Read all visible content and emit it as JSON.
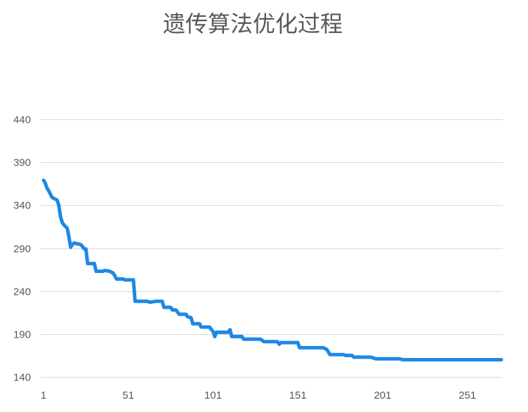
{
  "chart_data": {
    "type": "line",
    "title": "遗传算法优化过程",
    "xlabel": "",
    "ylabel": "",
    "xlim": [
      1,
      271
    ],
    "ylim": [
      140,
      440
    ],
    "x_ticks": [
      1,
      51,
      101,
      151,
      201,
      251
    ],
    "y_ticks": [
      140,
      190,
      240,
      290,
      340,
      390,
      440
    ],
    "grid": true,
    "legend": "none",
    "series": [
      {
        "color": "#1E88E5",
        "points": [
          [
            1,
            369
          ],
          [
            2,
            366
          ],
          [
            3,
            360
          ],
          [
            4,
            357
          ],
          [
            5,
            353
          ],
          [
            6,
            349
          ],
          [
            8,
            347
          ],
          [
            9,
            346
          ],
          [
            10,
            340
          ],
          [
            11,
            327
          ],
          [
            12,
            320
          ],
          [
            13,
            317
          ],
          [
            14,
            315
          ],
          [
            15,
            313
          ],
          [
            16,
            303
          ],
          [
            17,
            291
          ],
          [
            18,
            294
          ],
          [
            19,
            296
          ],
          [
            21,
            295
          ],
          [
            23,
            294
          ],
          [
            24,
            292
          ],
          [
            25,
            289
          ],
          [
            26,
            289
          ],
          [
            27,
            272
          ],
          [
            31,
            272
          ],
          [
            32,
            263
          ],
          [
            36,
            263
          ],
          [
            37,
            264
          ],
          [
            40,
            263
          ],
          [
            42,
            261
          ],
          [
            43,
            258
          ],
          [
            44,
            254
          ],
          [
            48,
            254
          ],
          [
            49,
            253
          ],
          [
            54,
            253
          ],
          [
            55,
            228
          ],
          [
            62,
            228
          ],
          [
            64,
            227
          ],
          [
            67,
            228
          ],
          [
            71,
            228
          ],
          [
            72,
            221
          ],
          [
            76,
            221
          ],
          [
            77,
            218
          ],
          [
            79,
            218
          ],
          [
            81,
            213
          ],
          [
            85,
            213
          ],
          [
            86,
            210
          ],
          [
            88,
            209
          ],
          [
            89,
            202
          ],
          [
            93,
            202
          ],
          [
            94,
            198
          ],
          [
            99,
            198
          ],
          [
            100,
            195
          ],
          [
            101,
            193
          ],
          [
            102,
            187
          ],
          [
            103,
            192
          ],
          [
            110,
            192
          ],
          [
            111,
            195
          ],
          [
            112,
            187
          ],
          [
            118,
            187
          ],
          [
            119,
            184
          ],
          [
            129,
            184
          ],
          [
            131,
            181
          ],
          [
            139,
            181
          ],
          [
            140,
            178
          ],
          [
            141,
            180
          ],
          [
            151,
            180
          ],
          [
            152,
            174
          ],
          [
            166,
            174
          ],
          [
            168,
            172
          ],
          [
            170,
            166
          ],
          [
            178,
            166
          ],
          [
            179,
            165
          ],
          [
            183,
            165
          ],
          [
            184,
            163
          ],
          [
            194,
            163
          ],
          [
            197,
            161
          ],
          [
            211,
            161
          ],
          [
            213,
            160
          ],
          [
            271,
            160
          ]
        ]
      }
    ]
  }
}
